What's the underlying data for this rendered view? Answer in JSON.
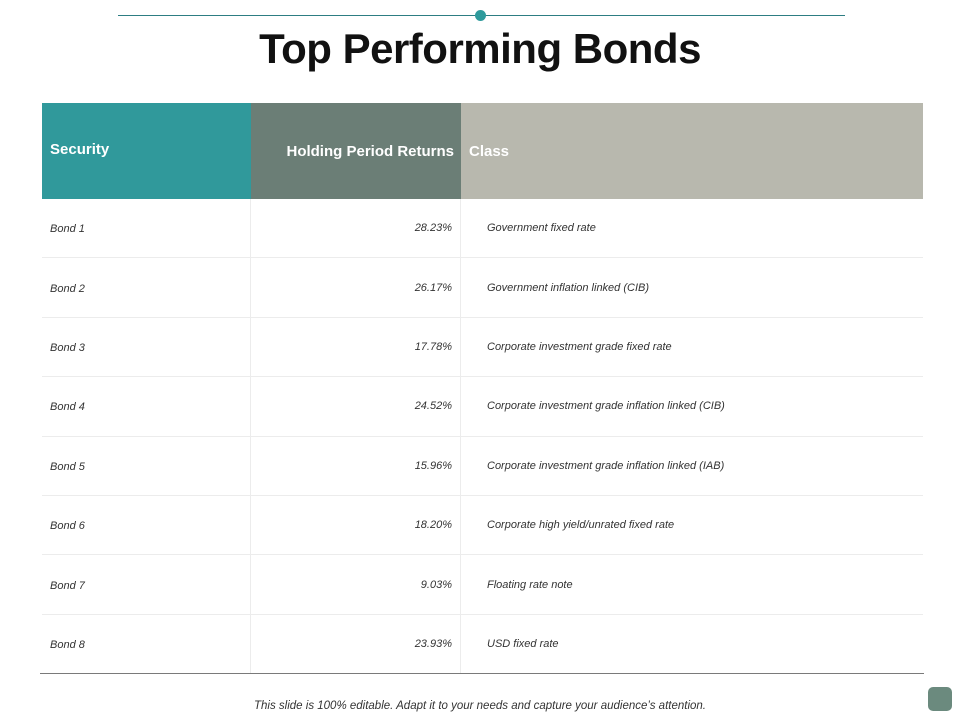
{
  "title": "Top Performing Bonds",
  "table": {
    "headers": {
      "security": "Security",
      "returns": "Holding Period Returns",
      "class": "Class"
    },
    "rows": [
      {
        "security": "Bond 1",
        "returns": "28.23%",
        "class": "Government fixed rate"
      },
      {
        "security": "Bond 2",
        "returns": "26.17%",
        "class": "Government inflation linked (CIB)"
      },
      {
        "security": "Bond 3",
        "returns": "17.78%",
        "class": "Corporate investment grade fixed rate"
      },
      {
        "security": "Bond 4",
        "returns": "24.52%",
        "class": "Corporate investment grade inflation linked (CIB)"
      },
      {
        "security": "Bond 5",
        "returns": "15.96%",
        "class": "Corporate investment grade inflation linked (IAB)"
      },
      {
        "security": "Bond 6",
        "returns": "18.20%",
        "class": "Corporate high yield/unrated fixed rate"
      },
      {
        "security": "Bond 7",
        "returns": "9.03%",
        "class": "Floating rate note"
      },
      {
        "security": "Bond 8",
        "returns": "23.93%",
        "class": "USD fixed rate"
      }
    ]
  },
  "footer": "This slide is 100% editable. Adapt it to your needs and capture your audience’s attention.",
  "colors": {
    "accent_teal": "#30999b",
    "header_green_gray": "#6b7e76",
    "header_light_gray": "#b8b8ae"
  }
}
